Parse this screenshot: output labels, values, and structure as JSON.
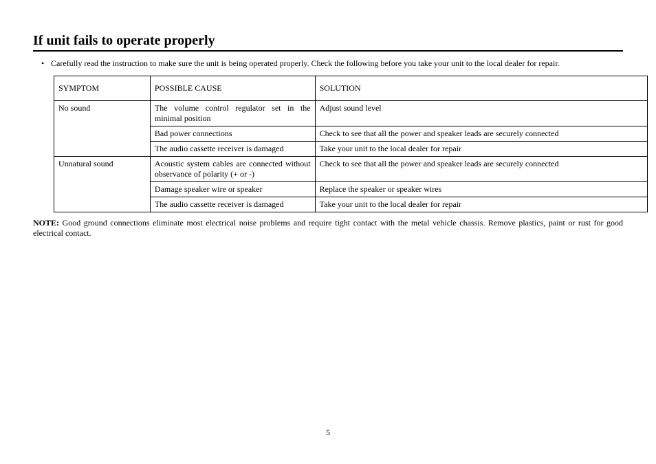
{
  "title": "If unit fails to operate properly",
  "bullet_glyph": "•",
  "intro": "Carefully read the instruction to make sure the unit is being operated properly. Check the following before you take your unit to the local dealer for repair.",
  "table": {
    "headers": {
      "symptom": "SYMPTOM",
      "cause": "POSSIBLE CAUSE",
      "solution": "SOLUTION"
    },
    "rows": {
      "r1": {
        "symptom": "No sound",
        "cause": "The volume control regulator set in the minimal position",
        "solution": "Adjust sound level"
      },
      "r2": {
        "cause": "Bad power connections",
        "solution": "Check to see that all the power and speaker leads are securely connected"
      },
      "r3": {
        "cause": "The audio cassette receiver is damaged",
        "solution": "Take your unit to the local dealer for repair"
      },
      "r4": {
        "symptom": "Unnatural sound",
        "cause": "Acoustic system cables are connected without observance of polarity (+ or -)",
        "solution": "Check to see that all the power and speaker leads are securely connected"
      },
      "r5": {
        "cause": "Damage speaker wire or speaker",
        "solution": "Replace the speaker or speaker wires"
      },
      "r6": {
        "cause": "The audio cassette receiver is damaged",
        "solution": "Take your unit to the local dealer for repair"
      }
    }
  },
  "note_label": "NOTE:",
  "note_text": " Good ground connections eliminate most electrical noise problems and require tight contact with the metal vehicle chassis. Remove plastics, paint or rust for good electrical contact.",
  "page_number": "5"
}
